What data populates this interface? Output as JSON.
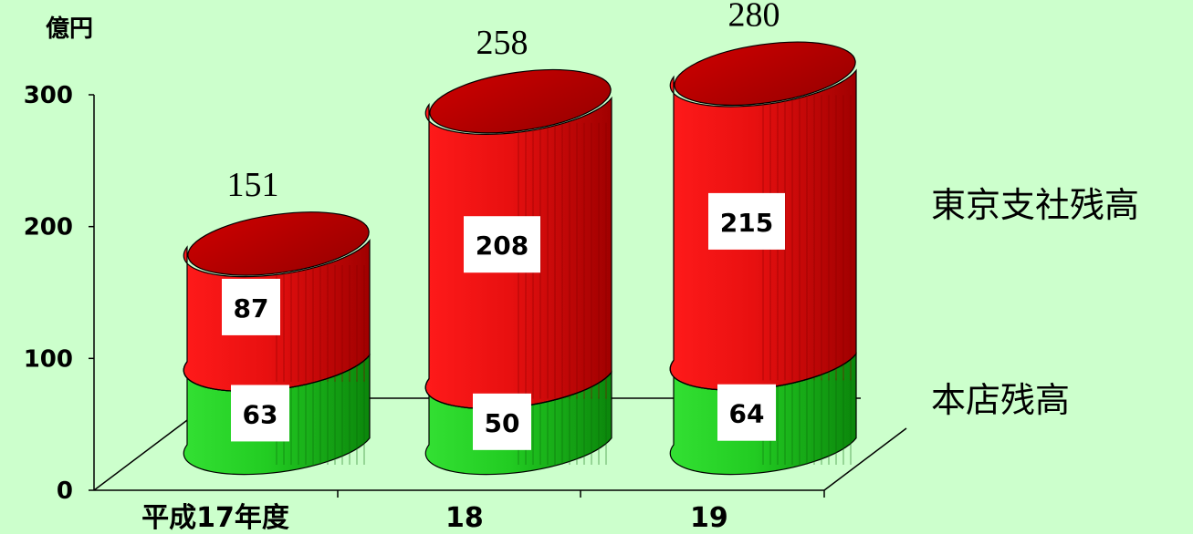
{
  "chart_data": {
    "type": "bar",
    "stacked": true,
    "style": "3d-cylinder",
    "unit_label": "億円",
    "categories": [
      "平成17年度",
      "18",
      "19"
    ],
    "series": [
      {
        "name": "本店残高",
        "values": [
          63,
          50,
          64
        ],
        "color": "#22cc22"
      },
      {
        "name": "東京支社残高",
        "values": [
          87,
          208,
          215
        ],
        "color": "#ee1111"
      }
    ],
    "totals": [
      151,
      258,
      280
    ],
    "yticks": [
      "0",
      "100",
      "200",
      "300"
    ],
    "ylim": [
      0,
      300
    ],
    "grid": false,
    "legend_position": "right"
  },
  "colors": {
    "background": "#ccffcc",
    "green_front": "#22cc22",
    "green_dark": "#0f8f0f",
    "red_front": "#ee1111",
    "red_dark": "#9a0000",
    "label_box": "#ffffff"
  }
}
